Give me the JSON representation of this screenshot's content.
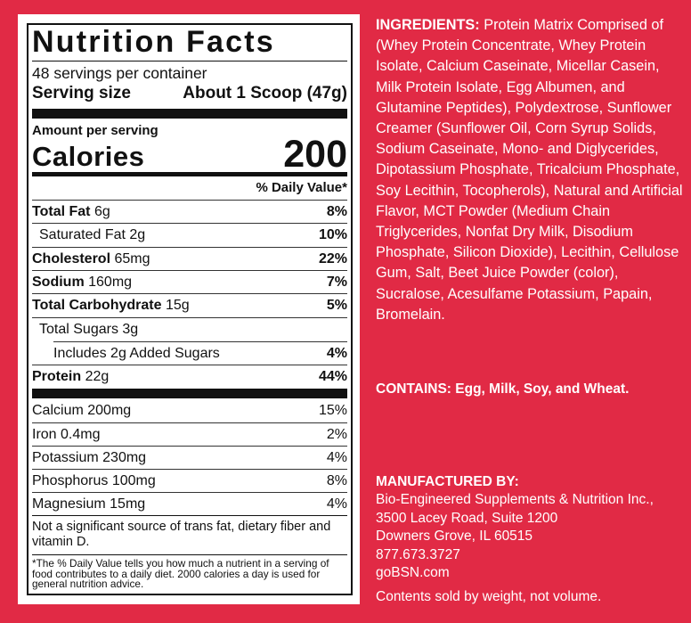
{
  "nutrition_facts": {
    "title": "Nutrition Facts",
    "servings": "48 servings per container",
    "serving_size": {
      "label": "Serving size",
      "value": "About 1 Scoop (47g)"
    },
    "amount_per_serving": "Amount per serving",
    "calories": {
      "label": "Calories",
      "value": 200
    },
    "daily_value_header": "% Daily Value*",
    "nutrients": [
      {
        "name": "Total Fat",
        "amount": "6g",
        "daily_value": "8%"
      },
      {
        "name": "Saturated Fat",
        "amount": "2g",
        "daily_value": "10%"
      },
      {
        "name": "Cholesterol",
        "amount": "65mg",
        "daily_value": "22%"
      },
      {
        "name": "Sodium",
        "amount": "160mg",
        "daily_value": "7%"
      },
      {
        "name": "Total Carbohydrate",
        "amount": "15g",
        "daily_value": "5%"
      },
      {
        "name": "Total Sugars",
        "amount": "3g"
      },
      {
        "name": "Includes 2g Added Sugars",
        "daily_value": "4%"
      },
      {
        "name": "Protein",
        "amount": "22g",
        "daily_value": "44%"
      }
    ],
    "minerals": [
      {
        "name": "Calcium",
        "amount": "200mg",
        "daily_value": "15%"
      },
      {
        "name": "Iron",
        "amount": "0.4mg",
        "daily_value": "2%"
      },
      {
        "name": "Potassium",
        "amount": "230mg",
        "daily_value": "4%"
      },
      {
        "name": "Phosphorus",
        "amount": "100mg",
        "daily_value": "8%"
      },
      {
        "name": "Magnesium",
        "amount": "15mg",
        "daily_value": "4%"
      }
    ],
    "note": "Not a significant source of trans fat, dietary fiber and vitamin D.",
    "footnote": "*The % Daily Value tells you how much a nutrient in a serving of food contributes to a daily diet. 2000 calories a day is used for general nutrition advice."
  },
  "ingredients": {
    "label": "INGREDIENTS:",
    "text": "Protein Matrix Comprised of (Whey Protein Concentrate, Whey Protein Isolate, Calcium Caseinate, Micellar Casein, Milk Protein Isolate, Egg Albumen, and Glutamine Peptides), Polydextrose, Sunflower Creamer (Sunflower Oil, Corn Syrup Solids, Sodium Caseinate, Mono- and Diglycerides, Dipotassium Phosphate, Tricalcium Phosphate, Soy Lecithin, Tocopherols), Natural and Artificial Flavor, MCT Powder (Medium Chain Triglycerides, Nonfat Dry Milk, Disodium Phosphate, Silicon Dioxide), Lecithin, Cellulose Gum, Salt, Beet Juice Powder (color), Sucralose, Acesulfame Potassium, Papain, Bromelain."
  },
  "contains": {
    "label": "CONTAINS:",
    "text": "Egg, Milk, Soy, and Wheat."
  },
  "manufacturer": {
    "label": "MANUFACTURED BY:",
    "lines": [
      "Bio-Engineered Supplements & Nutrition Inc.,",
      "3500 Lacey Road, Suite 1200",
      "Downers Grove, IL 60515",
      "877.673.3727",
      "goBSN.com"
    ]
  },
  "disclaimer": "Contents sold by weight, not volume."
}
